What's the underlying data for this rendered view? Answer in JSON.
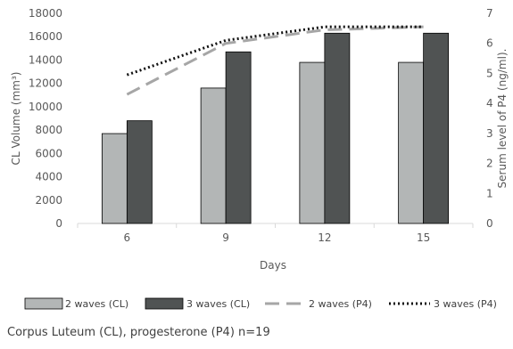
{
  "chart_data": {
    "type": "bar",
    "categories": [
      "6",
      "9",
      "12",
      "15"
    ],
    "xlabel": "Days",
    "ylabel": "CL Volume (mm³)",
    "y2label": "Serum level of P4 (ng/ml).",
    "ylim": [
      0,
      18000
    ],
    "y_ticks": [
      "0",
      "2000",
      "4000",
      "6000",
      "8000",
      "10000",
      "12000",
      "14000",
      "16000",
      "18000"
    ],
    "y2lim": [
      0,
      7
    ],
    "y2_ticks": [
      "0",
      "1",
      "2",
      "3",
      "4",
      "5",
      "6",
      "7"
    ],
    "grid": false,
    "legend_position": "bottom",
    "series": [
      {
        "name": "2 waves (CL)",
        "kind": "bar",
        "axis": "left",
        "color": "#b3b6b6",
        "values": [
          7700,
          11600,
          13800,
          13800
        ]
      },
      {
        "name": "3 waves (CL)",
        "kind": "bar",
        "axis": "left",
        "color": "#505353",
        "values": [
          8800,
          14700,
          16300,
          16300
        ]
      },
      {
        "name": "2 waves (P4)",
        "kind": "line",
        "axis": "right",
        "color": "#a6a6a6",
        "dash": "dashed",
        "values": [
          4.3,
          6.0,
          6.45,
          6.55
        ]
      },
      {
        "name": "3 waves (P4)",
        "kind": "line",
        "axis": "right",
        "color": "#111111",
        "dash": "dotted",
        "values": [
          4.95,
          6.1,
          6.55,
          6.55
        ]
      }
    ]
  },
  "caption": "Corpus Luteum (CL), progesterone (P4) n=19"
}
